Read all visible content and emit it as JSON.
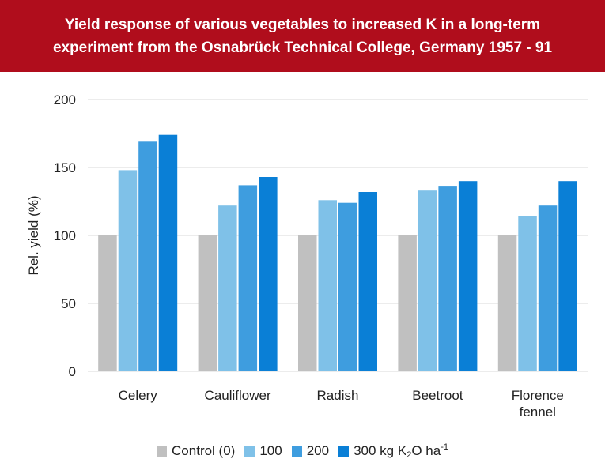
{
  "title": {
    "line1": "Yield response of various vegetables to increased K in a long-term",
    "line2": "experiment from the Osnabrück Technical College, Germany 1957 - 91"
  },
  "colors": {
    "title_bg": "#b00d1c",
    "series": [
      "#c0c0c0",
      "#7fc1e8",
      "#3e9ddf",
      "#0a7fd6"
    ],
    "grid": "#d9d9d9"
  },
  "chart_data": {
    "type": "bar",
    "title": "Yield response of various vegetables to increased K in a long-term experiment from the Osnabrück Technical College, Germany 1957 - 91",
    "categories": [
      [
        "Celery"
      ],
      [
        "Cauliflower"
      ],
      [
        "Radish"
      ],
      [
        "Beetroot"
      ],
      [
        "Florence",
        "fennel"
      ]
    ],
    "series": [
      {
        "name": "Control (0)",
        "values": [
          100,
          100,
          100,
          100,
          100
        ]
      },
      {
        "name": "100",
        "values": [
          148,
          122,
          126,
          133,
          114
        ]
      },
      {
        "name": "200",
        "values": [
          169,
          137,
          124,
          136,
          122
        ]
      },
      {
        "name": "300 kg K2O ha-1",
        "values": [
          174,
          143,
          132,
          140,
          140
        ]
      }
    ],
    "ylabel": "Rel. yield (%)",
    "xlabel": "",
    "ylim": [
      0,
      200
    ],
    "yticks": [
      0,
      50,
      100,
      150,
      200
    ],
    "grid": true,
    "legend_position": "bottom"
  },
  "legend": {
    "items": [
      {
        "label": "Control (0)"
      },
      {
        "label": "100"
      },
      {
        "label": "200"
      },
      {
        "label_pre": "300 kg K",
        "label_sub": "2",
        "label_mid": "O ha",
        "label_sup": "-1"
      }
    ]
  }
}
